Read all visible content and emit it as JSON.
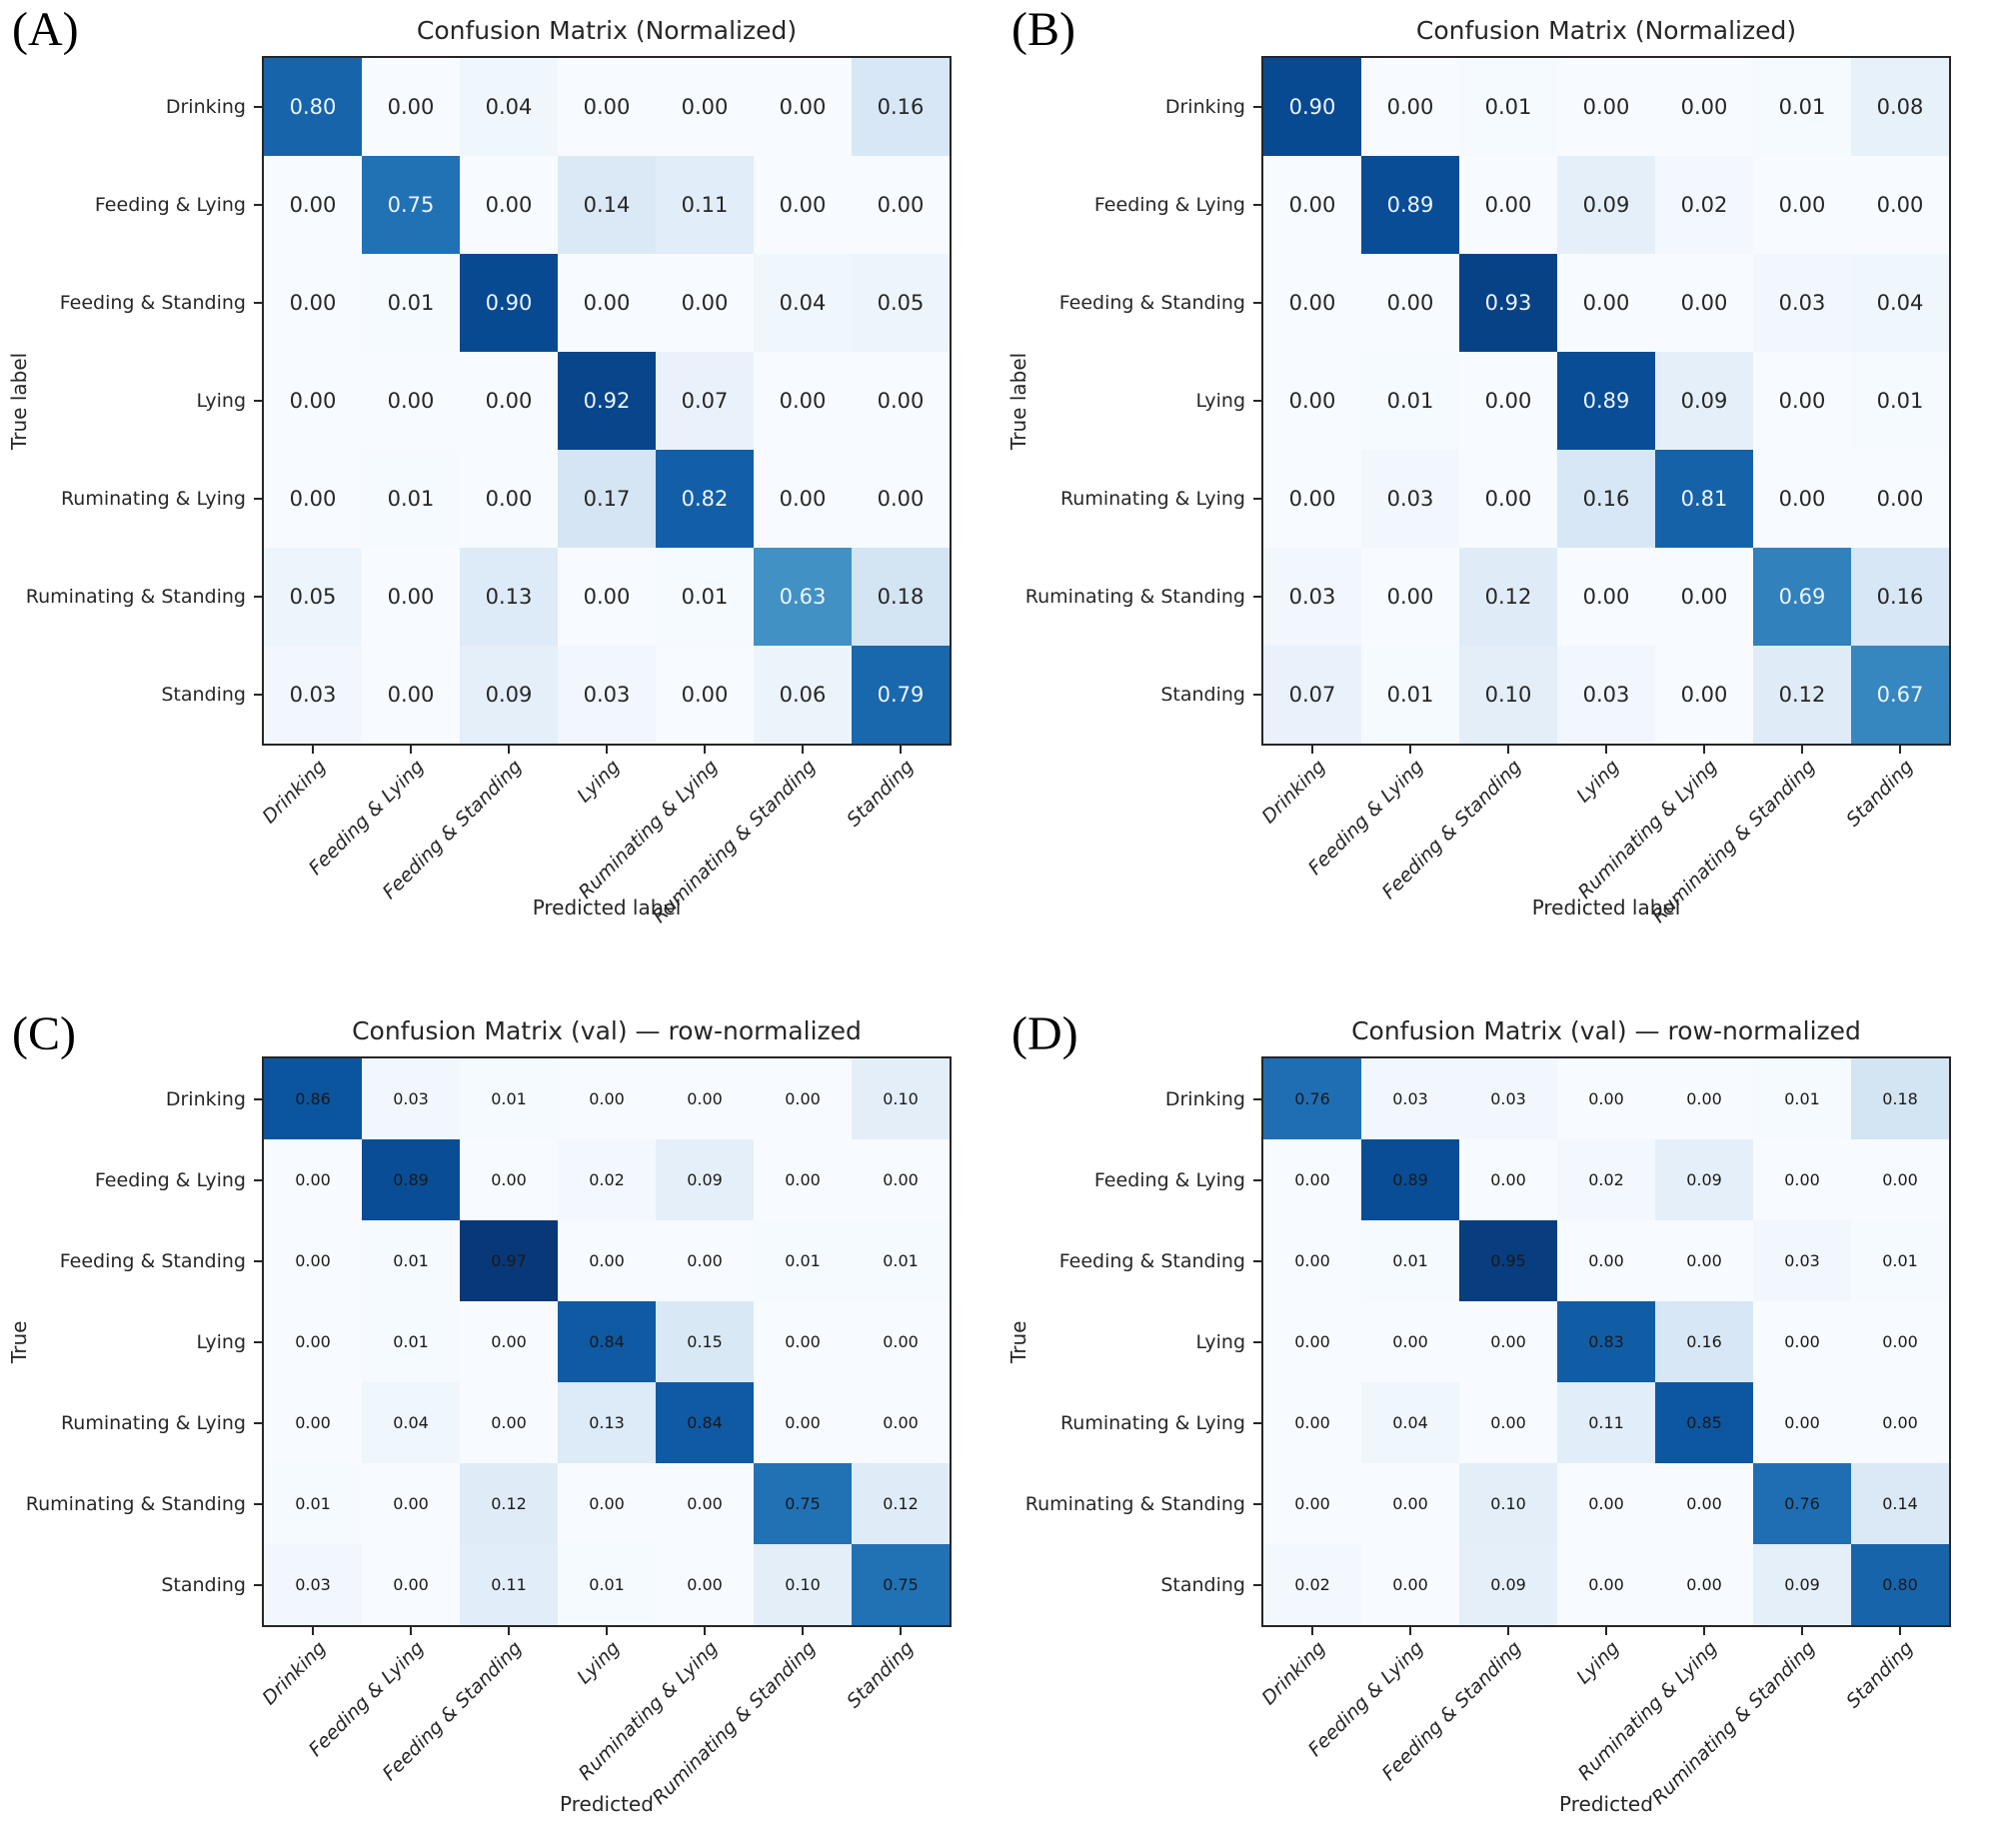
{
  "figure": {
    "background": "#ffffff",
    "colormap_dark": "#08306b",
    "colormap_light": "#f7fbff"
  },
  "chart_data": [
    {
      "type": "heatmap",
      "panel": "(A)",
      "title": "Confusion Matrix (Normalized)",
      "xlabel": "Predicted label",
      "ylabel": "True label",
      "colormap": "Blues",
      "value_range": [
        0,
        1
      ],
      "text_rule": "adaptive-white-on-dark",
      "categories": [
        "Drinking",
        "Feeding & Lying",
        "Feeding & Standing",
        "Lying",
        "Ruminating & Lying",
        "Ruminating & Standing",
        "Standing"
      ],
      "matrix": [
        [
          0.8,
          0.0,
          0.04,
          0.0,
          0.0,
          0.0,
          0.16
        ],
        [
          0.0,
          0.75,
          0.0,
          0.14,
          0.11,
          0.0,
          0.0
        ],
        [
          0.0,
          0.01,
          0.9,
          0.0,
          0.0,
          0.04,
          0.05
        ],
        [
          0.0,
          0.0,
          0.0,
          0.92,
          0.07,
          0.0,
          0.0
        ],
        [
          0.0,
          0.01,
          0.0,
          0.17,
          0.82,
          0.0,
          0.0
        ],
        [
          0.05,
          0.0,
          0.13,
          0.0,
          0.01,
          0.63,
          0.18
        ],
        [
          0.03,
          0.0,
          0.09,
          0.03,
          0.0,
          0.06,
          0.79
        ]
      ]
    },
    {
      "type": "heatmap",
      "panel": "(B)",
      "title": "Confusion Matrix (Normalized)",
      "xlabel": "Predicted label",
      "ylabel": "True label",
      "colormap": "Blues",
      "value_range": [
        0,
        1
      ],
      "text_rule": "adaptive-white-on-dark",
      "categories": [
        "Drinking",
        "Feeding & Lying",
        "Feeding & Standing",
        "Lying",
        "Ruminating & Lying",
        "Ruminating & Standing",
        "Standing"
      ],
      "matrix": [
        [
          0.9,
          0.0,
          0.01,
          0.0,
          0.0,
          0.01,
          0.08
        ],
        [
          0.0,
          0.89,
          0.0,
          0.09,
          0.02,
          0.0,
          0.0
        ],
        [
          0.0,
          0.0,
          0.93,
          0.0,
          0.0,
          0.03,
          0.04
        ],
        [
          0.0,
          0.01,
          0.0,
          0.89,
          0.09,
          0.0,
          0.01
        ],
        [
          0.0,
          0.03,
          0.0,
          0.16,
          0.81,
          0.0,
          0.0
        ],
        [
          0.03,
          0.0,
          0.12,
          0.0,
          0.0,
          0.69,
          0.16
        ],
        [
          0.07,
          0.01,
          0.1,
          0.03,
          0.0,
          0.12,
          0.67
        ]
      ]
    },
    {
      "type": "heatmap",
      "panel": "(C)",
      "title": "Confusion Matrix (val) — row-normalized",
      "xlabel": "Predicted",
      "ylabel": "True",
      "colormap": "Blues",
      "value_range": [
        0,
        1
      ],
      "text_rule": "always-dark",
      "categories": [
        "Drinking",
        "Feeding & Lying",
        "Feeding & Standing",
        "Lying",
        "Ruminating & Lying",
        "Ruminating & Standing",
        "Standing"
      ],
      "matrix": [
        [
          0.86,
          0.03,
          0.01,
          0.0,
          0.0,
          0.0,
          0.1
        ],
        [
          0.0,
          0.89,
          0.0,
          0.02,
          0.09,
          0.0,
          0.0
        ],
        [
          0.0,
          0.01,
          0.97,
          0.0,
          0.0,
          0.01,
          0.01
        ],
        [
          0.0,
          0.01,
          0.0,
          0.84,
          0.15,
          0.0,
          0.0
        ],
        [
          0.0,
          0.04,
          0.0,
          0.13,
          0.84,
          0.0,
          0.0
        ],
        [
          0.01,
          0.0,
          0.12,
          0.0,
          0.0,
          0.75,
          0.12
        ],
        [
          0.03,
          0.0,
          0.11,
          0.01,
          0.0,
          0.1,
          0.75
        ]
      ]
    },
    {
      "type": "heatmap",
      "panel": "(D)",
      "title": "Confusion Matrix (val) — row-normalized",
      "xlabel": "Predicted",
      "ylabel": "True",
      "colormap": "Blues",
      "value_range": [
        0,
        1
      ],
      "text_rule": "always-dark",
      "categories": [
        "Drinking",
        "Feeding & Lying",
        "Feeding & Standing",
        "Lying",
        "Ruminating & Lying",
        "Ruminating & Standing",
        "Standing"
      ],
      "matrix": [
        [
          0.76,
          0.03,
          0.03,
          0.0,
          0.0,
          0.01,
          0.18
        ],
        [
          0.0,
          0.89,
          0.0,
          0.02,
          0.09,
          0.0,
          0.0
        ],
        [
          0.0,
          0.01,
          0.95,
          0.0,
          0.0,
          0.03,
          0.01
        ],
        [
          0.0,
          0.0,
          0.0,
          0.83,
          0.16,
          0.0,
          0.0
        ],
        [
          0.0,
          0.04,
          0.0,
          0.11,
          0.85,
          0.0,
          0.0
        ],
        [
          0.0,
          0.0,
          0.1,
          0.0,
          0.0,
          0.76,
          0.14
        ],
        [
          0.02,
          0.0,
          0.09,
          0.0,
          0.0,
          0.09,
          0.8
        ]
      ]
    }
  ]
}
